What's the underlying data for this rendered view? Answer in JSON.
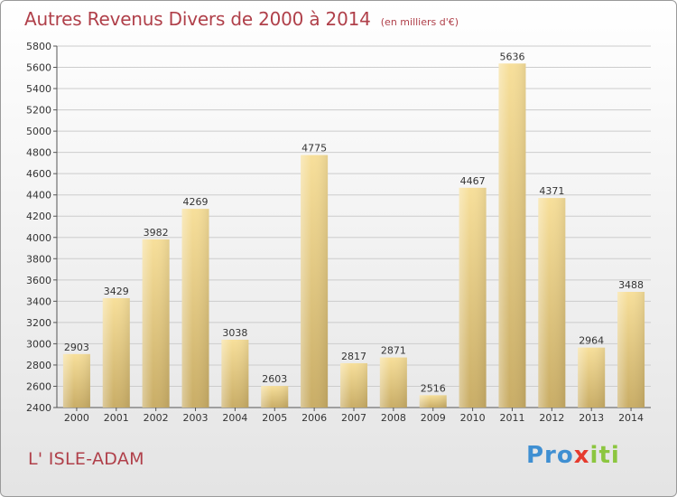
{
  "title": "Autres Revenus Divers de 2000 à 2014",
  "title_unit": "(en milliers d'€)",
  "place": "L' ISLE-ADAM",
  "logo": {
    "p1": "Pro",
    "p2": "x",
    "p3": "iti"
  },
  "colors": {
    "title": "#b0404a",
    "bar_light": "#f7df9a",
    "bar_dark": "#c9ad66",
    "grid": "#cccccc",
    "logo_p1": "#3f8fd2",
    "logo_p2": "#e63b2e",
    "logo_p3": "#8cc63f"
  },
  "chart_data": {
    "type": "bar",
    "categories": [
      "2000",
      "2001",
      "2002",
      "2003",
      "2004",
      "2005",
      "2006",
      "2007",
      "2008",
      "2009",
      "2010",
      "2011",
      "2012",
      "2013",
      "2014"
    ],
    "values": [
      2903,
      3429,
      3982,
      4269,
      3038,
      2603,
      4775,
      2817,
      2871,
      2516,
      4467,
      5636,
      4371,
      2964,
      3488
    ],
    "title": "Autres Revenus Divers de 2000 à 2014",
    "xlabel": "",
    "ylabel": "",
    "ylim": [
      2400,
      5800
    ],
    "yticks": [
      2400,
      2600,
      2800,
      3000,
      3200,
      3400,
      3600,
      3800,
      4000,
      4200,
      4400,
      4600,
      4800,
      5000,
      5200,
      5400,
      5600,
      5800
    ],
    "grid": true,
    "data_labels": true
  }
}
